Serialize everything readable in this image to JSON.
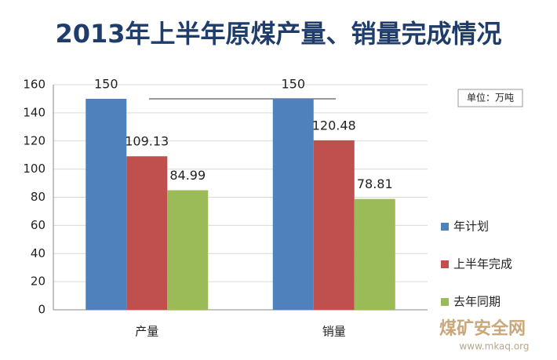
{
  "chart_data": {
    "type": "bar",
    "title": "2013年上半年原煤产量、销量完成情况",
    "annotation": "单位：万吨",
    "categories": [
      "产量",
      "销量"
    ],
    "series": [
      {
        "name": "年计划",
        "color": "#4f81bd",
        "values": [
          150,
          150
        ]
      },
      {
        "name": "上半年完成",
        "color": "#c0504d",
        "values": [
          109.13,
          120.48
        ]
      },
      {
        "name": "去年同期",
        "color": "#9bbb59",
        "values": [
          84.99,
          78.81
        ]
      }
    ],
    "ylim": [
      0,
      160
    ],
    "yticks": [
      0,
      20,
      40,
      60,
      80,
      100,
      120,
      140,
      160
    ],
    "grid": true,
    "legend": "right"
  },
  "watermark": {
    "name": "煤矿安全网",
    "url": "www.mkaq.org"
  }
}
